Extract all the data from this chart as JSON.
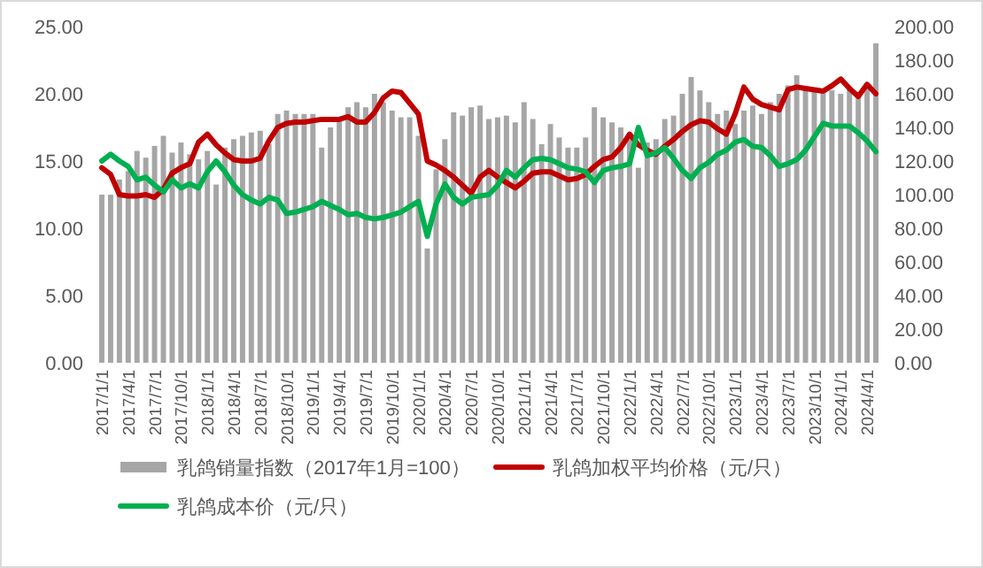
{
  "chart_data": {
    "type": "bar",
    "categories": [
      "2017/1/1",
      null,
      null,
      "2017/4/1",
      null,
      null,
      "2017/7/1",
      null,
      null,
      "2017/10/1",
      null,
      null,
      "2018/1/1",
      null,
      null,
      "2018/4/1",
      null,
      null,
      "2018/7/1",
      null,
      null,
      "2018/10/1",
      null,
      null,
      "2019/1/1",
      null,
      null,
      "2019/4/1",
      null,
      null,
      "2019/7/1",
      null,
      null,
      "2019/10/1",
      null,
      null,
      "2020/1/1",
      null,
      null,
      "2020/4/1",
      null,
      null,
      "2020/7/1",
      null,
      null,
      "2020/10/1",
      null,
      null,
      "2021/1/1",
      null,
      null,
      "2021/4/1",
      null,
      null,
      "2021/7/1",
      null,
      null,
      "2021/10/1",
      null,
      null,
      "2022/1/1",
      null,
      null,
      "2022/4/1",
      null,
      null,
      "2022/7/1",
      null,
      null,
      "2022/10/1",
      null,
      null,
      "2023/1/1",
      null,
      null,
      "2023/4/1",
      null,
      null,
      "2023/7/1",
      null,
      null,
      "2023/10/1",
      null,
      null,
      "2024/1/1",
      null,
      null,
      "2024/4/1",
      null
    ],
    "series": [
      {
        "name": "乳鸽销量指数（2017年1月=100）",
        "axis": "y2",
        "color": "#a6a6a6",
        "values": [
          100,
          100,
          109,
          114,
          126,
          122,
          129,
          135,
          125,
          131,
          124,
          121,
          126,
          106,
          128,
          133,
          135,
          137,
          138,
          130,
          148,
          150,
          148,
          148,
          148,
          128,
          140,
          145,
          152,
          155,
          152,
          160,
          155,
          150,
          146,
          146,
          135,
          68,
          115,
          133,
          149,
          147,
          152,
          153,
          145,
          146,
          147,
          143,
          155,
          145,
          130,
          142,
          134,
          128,
          128,
          134,
          152,
          146,
          143,
          140,
          133,
          116,
          131,
          133,
          145,
          147,
          160,
          170,
          162,
          155,
          148,
          150,
          142,
          150,
          153,
          148,
          155,
          160,
          165,
          171,
          163,
          162,
          163,
          162,
          160,
          163,
          160,
          165,
          190
        ]
      },
      {
        "name": "乳鸽加权平均价格（元/只）",
        "type": "line",
        "axis": "y",
        "color": "#c00000",
        "values": [
          14.5,
          14.0,
          12.5,
          12.4,
          12.4,
          12.5,
          12.3,
          12.9,
          14.1,
          14.5,
          14.8,
          16.4,
          17.0,
          16.2,
          15.6,
          15.1,
          15.0,
          15.0,
          15.2,
          16.5,
          17.5,
          17.8,
          17.9,
          17.9,
          18.0,
          18.1,
          18.1,
          18.1,
          18.3,
          17.9,
          17.9,
          18.6,
          19.7,
          20.2,
          20.1,
          19.3,
          18.5,
          15.0,
          14.7,
          14.3,
          13.8,
          13.2,
          12.6,
          13.8,
          14.3,
          13.8,
          13.4,
          13.0,
          13.5,
          14.1,
          14.2,
          14.2,
          13.9,
          13.6,
          13.7,
          14.0,
          14.6,
          15.1,
          15.3,
          16.0,
          17.0,
          16.2,
          15.8,
          15.5,
          16.1,
          16.6,
          17.2,
          17.7,
          18.0,
          17.9,
          17.4,
          17.0,
          18.5,
          20.5,
          19.6,
          19.2,
          19.0,
          18.8,
          20.3,
          20.5,
          20.4,
          20.3,
          20.2,
          20.6,
          21.1,
          20.4,
          19.8,
          20.7,
          20.0
        ]
      },
      {
        "name": "乳鸽成本价（元/只）",
        "type": "line",
        "axis": "y",
        "color": "#00b050",
        "values": [
          15.0,
          15.5,
          15.0,
          14.6,
          13.6,
          13.8,
          13.2,
          12.7,
          13.6,
          13.0,
          13.3,
          13.0,
          14.2,
          15.0,
          14.2,
          13.2,
          12.5,
          12.1,
          11.8,
          12.3,
          12.1,
          11.1,
          11.2,
          11.4,
          11.6,
          12.0,
          11.7,
          11.4,
          11.0,
          11.1,
          10.8,
          10.7,
          10.8,
          11.0,
          11.2,
          11.6,
          12.0,
          9.4,
          11.8,
          13.3,
          12.3,
          11.8,
          12.3,
          12.4,
          12.5,
          13.2,
          14.3,
          13.8,
          14.5,
          15.1,
          15.2,
          15.1,
          14.8,
          14.5,
          14.4,
          14.2,
          13.4,
          14.3,
          14.5,
          14.6,
          14.8,
          17.5,
          15.4,
          15.6,
          16.0,
          15.2,
          14.3,
          13.7,
          14.5,
          14.9,
          15.5,
          15.8,
          16.4,
          16.6,
          16.1,
          16.0,
          15.4,
          14.6,
          14.8,
          15.1,
          15.8,
          16.8,
          17.8,
          17.6,
          17.6,
          17.6,
          17.1,
          16.5,
          15.7
        ]
      }
    ],
    "ylim": [
      0,
      25
    ],
    "yticks": [
      {
        "value": 0,
        "label": "0.00"
      },
      {
        "value": 5,
        "label": "5.00"
      },
      {
        "value": 10,
        "label": "10.00"
      },
      {
        "value": 15,
        "label": "15.00"
      },
      {
        "value": 20,
        "label": "20.00"
      },
      {
        "value": 25,
        "label": "25.00"
      }
    ],
    "y2lim": [
      0,
      200
    ],
    "y2ticks": [
      {
        "value": 0,
        "label": "0.00"
      },
      {
        "value": 20,
        "label": "20.00"
      },
      {
        "value": 40,
        "label": "40.00"
      },
      {
        "value": 60,
        "label": "60.00"
      },
      {
        "value": 80,
        "label": "80.00"
      },
      {
        "value": 100,
        "label": "100.00"
      },
      {
        "value": 120,
        "label": "120.00"
      },
      {
        "value": 140,
        "label": "140.00"
      },
      {
        "value": 160,
        "label": "160.00"
      },
      {
        "value": 180,
        "label": "180.00"
      },
      {
        "value": 200,
        "label": "200.00"
      }
    ],
    "legend": "bottom",
    "line_style": "solid"
  }
}
